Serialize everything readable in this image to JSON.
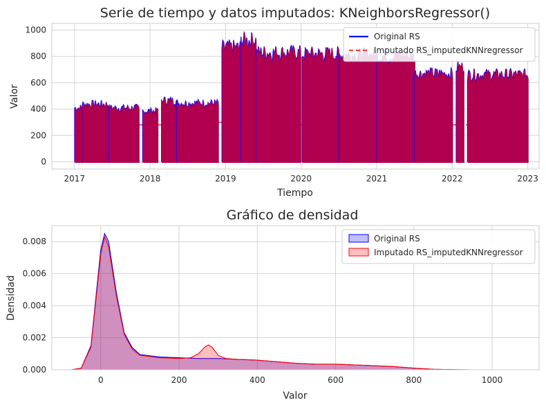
{
  "chart_data": [
    {
      "type": "line",
      "title": "Serie de tiempo y datos imputados: KNeighborsRegressor()",
      "xlabel": "Tiempo",
      "ylabel": "Valor",
      "xlim": [
        2016.7,
        2023.15
      ],
      "ylim": [
        -55,
        1050
      ],
      "xticks": [
        2017,
        2018,
        2019,
        2020,
        2021,
        2022,
        2023
      ],
      "yticks": [
        0,
        200,
        400,
        600,
        800,
        1000
      ],
      "grid": true,
      "legend_position": "top-right",
      "series": [
        {
          "name": "Original RS",
          "color": "#0000ff",
          "style": "solid"
        },
        {
          "name": "Imputado RS_imputedKNNregressor",
          "color": "#ff0000",
          "style": "dashed"
        }
      ],
      "envelope": {
        "note_units": "year, daily max value",
        "segments": [
          {
            "x0": 2017.0,
            "x1": 2017.1,
            "peak": 440
          },
          {
            "x0": 2017.1,
            "x1": 2017.45,
            "peak": 470
          },
          {
            "x0": 2017.45,
            "x1": 2017.85,
            "peak": 440
          },
          {
            "x0": 2017.9,
            "x1": 2018.1,
            "peak": 415
          },
          {
            "x0": 2018.15,
            "x1": 2018.35,
            "peak": 500
          },
          {
            "x0": 2018.35,
            "x1": 2018.9,
            "peak": 480
          },
          {
            "x0": 2018.95,
            "x1": 2019.2,
            "peak": 930
          },
          {
            "x0": 2019.2,
            "x1": 2019.4,
            "peak": 990
          },
          {
            "x0": 2019.4,
            "x1": 2019.99,
            "peak": 890
          },
          {
            "x0": 2020.01,
            "x1": 2020.5,
            "peak": 880
          },
          {
            "x0": 2020.5,
            "x1": 2021.0,
            "peak": 870
          },
          {
            "x0": 2021.0,
            "x1": 2021.5,
            "peak": 860
          },
          {
            "x0": 2021.5,
            "x1": 2022.0,
            "peak": 720
          },
          {
            "x0": 2022.05,
            "x1": 2022.15,
            "peak": 770
          },
          {
            "x0": 2022.2,
            "x1": 2023.0,
            "peak": 710
          }
        ],
        "imputed_gaps": [
          {
            "x0": 2017.85,
            "x1": 2017.9,
            "level": 280
          },
          {
            "x0": 2018.1,
            "x1": 2018.15,
            "level": 280
          },
          {
            "x0": 2018.9,
            "x1": 2018.95,
            "level": 300
          },
          {
            "x0": 2019.99,
            "x1": 2020.01,
            "level": 280
          },
          {
            "x0": 2022.0,
            "x1": 2022.2,
            "level": 280
          }
        ],
        "fill_color": "#b0004e"
      }
    },
    {
      "type": "area",
      "title": "Gráfico de densidad",
      "xlabel": "Valor",
      "ylabel": "Densidad",
      "xlim": [
        -125,
        1120
      ],
      "ylim": [
        0,
        0.009
      ],
      "xticks": [
        0,
        200,
        400,
        600,
        800,
        1000
      ],
      "yticks": [
        0.0,
        0.002,
        0.004,
        0.006,
        0.008
      ],
      "ytick_labels": [
        "0.000",
        "0.002",
        "0.004",
        "0.006",
        "0.008"
      ],
      "grid": true,
      "legend_position": "top-right",
      "series": [
        {
          "name": "Original RS",
          "color": "#0000ff",
          "fill": "rgba(0,0,255,0.25)",
          "x": [
            -75,
            -50,
            -25,
            0,
            10,
            20,
            40,
            60,
            80,
            100,
            150,
            200,
            250,
            270,
            285,
            300,
            350,
            400,
            450,
            500,
            550,
            600,
            650,
            700,
            750,
            800,
            850,
            900,
            950,
            1000,
            1070
          ],
          "y": [
            0.0,
            0.0001,
            0.0015,
            0.0075,
            0.0085,
            0.008,
            0.0048,
            0.0023,
            0.0014,
            0.00095,
            0.0008,
            0.00075,
            0.0007,
            0.0007,
            0.0007,
            0.0007,
            0.00065,
            0.0006,
            0.0005,
            0.0004,
            0.00035,
            0.00035,
            0.0003,
            0.00025,
            0.0002,
            0.0001,
            3e-05,
            1e-05,
            0.0,
            0.0,
            0.0
          ]
        },
        {
          "name": "Imputado RS_imputedKNNregressor",
          "color": "#ff0000",
          "fill": "rgba(255,0,0,0.25)",
          "x": [
            -75,
            -50,
            -25,
            0,
            10,
            20,
            40,
            60,
            80,
            100,
            150,
            200,
            230,
            250,
            265,
            275,
            285,
            300,
            320,
            350,
            400,
            450,
            500,
            550,
            600,
            650,
            700,
            750,
            800,
            850,
            900,
            950,
            1000,
            1070
          ],
          "y": [
            0.0,
            0.0001,
            0.0014,
            0.0072,
            0.0083,
            0.0077,
            0.0046,
            0.0022,
            0.0013,
            0.0009,
            0.00075,
            0.0007,
            0.00075,
            0.001,
            0.0014,
            0.00155,
            0.0014,
            0.0009,
            0.0007,
            0.00065,
            0.0006,
            0.0005,
            0.0004,
            0.00035,
            0.00035,
            0.0003,
            0.00025,
            0.0002,
            0.0001,
            3e-05,
            1e-05,
            0.0,
            0.0,
            0.0
          ]
        }
      ]
    }
  ]
}
